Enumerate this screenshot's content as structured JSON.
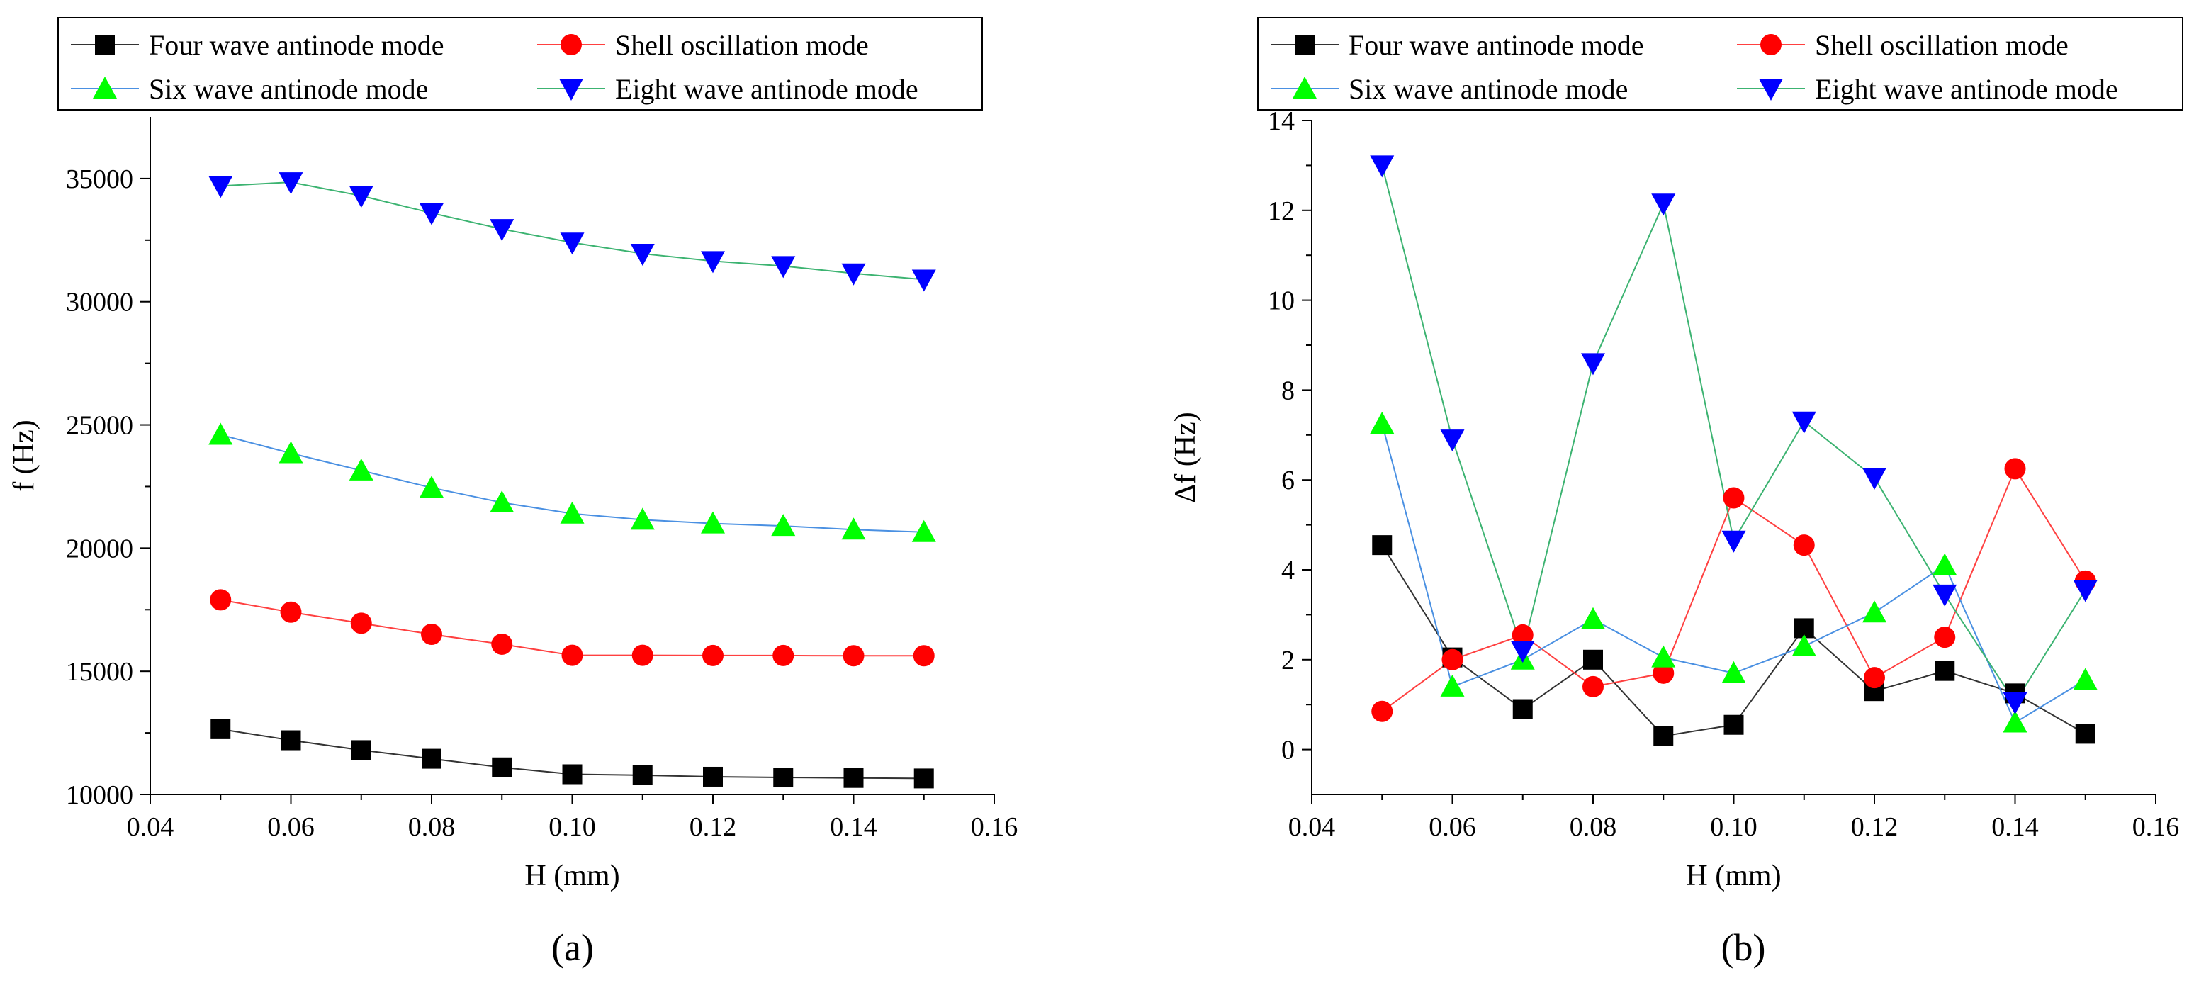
{
  "chart_data": [
    {
      "type": "line",
      "panel_label": "(a)",
      "xlabel": "H (mm)",
      "ylabel": "f (Hz)",
      "xlim": [
        0.04,
        0.16
      ],
      "ylim": [
        10000,
        37500
      ],
      "x_ticks": [
        0.04,
        0.06,
        0.08,
        0.1,
        0.12,
        0.14,
        0.16
      ],
      "x_tick_labels": [
        "0.04",
        "0.06",
        "0.08",
        "0.10",
        "0.12",
        "0.14",
        "0.16"
      ],
      "y_ticks": [
        10000,
        15000,
        20000,
        25000,
        30000,
        35000
      ],
      "y_tick_labels": [
        "10000",
        "15000",
        "20000",
        "25000",
        "30000",
        "35000"
      ],
      "grid": false,
      "legend_position": "top",
      "x": [
        0.05,
        0.06,
        0.07,
        0.08,
        0.09,
        0.1,
        0.11,
        0.12,
        0.13,
        0.14,
        0.15
      ],
      "series": [
        {
          "name": "Four wave antinode mode",
          "marker": "square",
          "marker_color": "#000000",
          "line_color": "#333333",
          "values": [
            12650,
            12200,
            11800,
            11450,
            11100,
            10820,
            10780,
            10720,
            10690,
            10670,
            10650
          ]
        },
        {
          "name": "Shell oscillation mode",
          "marker": "circle",
          "marker_color": "#ff0000",
          "line_color": "#ff4040",
          "values": [
            17900,
            17400,
            16950,
            16500,
            16100,
            15650,
            15650,
            15640,
            15640,
            15630,
            15630
          ]
        },
        {
          "name": "Six wave antinode mode",
          "marker": "triangle-up",
          "marker_color": "#00ff00",
          "line_color": "#4a90e2",
          "values": [
            24600,
            23850,
            23150,
            22450,
            21850,
            21400,
            21150,
            21000,
            20900,
            20750,
            20650
          ]
        },
        {
          "name": "Eight wave antinode mode",
          "marker": "triangle-down",
          "marker_color": "#0000ff",
          "line_color": "#3cb371",
          "values": [
            34700,
            34850,
            34300,
            33600,
            32950,
            32400,
            31950,
            31650,
            31450,
            31150,
            30900
          ]
        }
      ]
    },
    {
      "type": "line",
      "panel_label": "(b)",
      "xlabel": "H (mm)",
      "ylabel": "Δf (Hz)",
      "xlim": [
        0.04,
        0.16
      ],
      "ylim": [
        -1,
        14
      ],
      "x_ticks": [
        0.04,
        0.06,
        0.08,
        0.1,
        0.12,
        0.14,
        0.16
      ],
      "x_tick_labels": [
        "0.04",
        "0.06",
        "0.08",
        "0.10",
        "0.12",
        "0.14",
        "0.16"
      ],
      "y_ticks": [
        0,
        2,
        4,
        6,
        8,
        10,
        12,
        14
      ],
      "y_tick_labels": [
        "0",
        "2",
        "4",
        "6",
        "8",
        "10",
        "12",
        "14"
      ],
      "grid": false,
      "legend_position": "top",
      "x": [
        0.05,
        0.06,
        0.07,
        0.08,
        0.09,
        0.1,
        0.11,
        0.12,
        0.13,
        0.14,
        0.15
      ],
      "series": [
        {
          "name": "Four wave antinode mode",
          "marker": "square",
          "marker_color": "#000000",
          "line_color": "#333333",
          "values": [
            4.55,
            2.05,
            0.9,
            2.0,
            0.3,
            0.55,
            2.7,
            1.3,
            1.75,
            1.25,
            0.35
          ]
        },
        {
          "name": "Shell oscillation mode",
          "marker": "circle",
          "marker_color": "#ff0000",
          "line_color": "#ff4040",
          "values": [
            0.85,
            2.0,
            2.55,
            1.4,
            1.7,
            5.6,
            4.55,
            1.6,
            2.5,
            6.25,
            3.75
          ]
        },
        {
          "name": "Six wave antinode mode",
          "marker": "triangle-up",
          "marker_color": "#00ff00",
          "line_color": "#4a90e2",
          "values": [
            7.25,
            1.4,
            2.0,
            2.9,
            2.05,
            1.7,
            2.3,
            3.05,
            4.1,
            0.6,
            1.55
          ]
        },
        {
          "name": "Eight wave antinode mode",
          "marker": "triangle-down",
          "marker_color": "#0000ff",
          "line_color": "#3cb371",
          "values": [
            13.0,
            6.9,
            2.2,
            8.6,
            12.15,
            4.65,
            7.3,
            6.05,
            3.45,
            1.05,
            3.55
          ]
        }
      ]
    }
  ]
}
